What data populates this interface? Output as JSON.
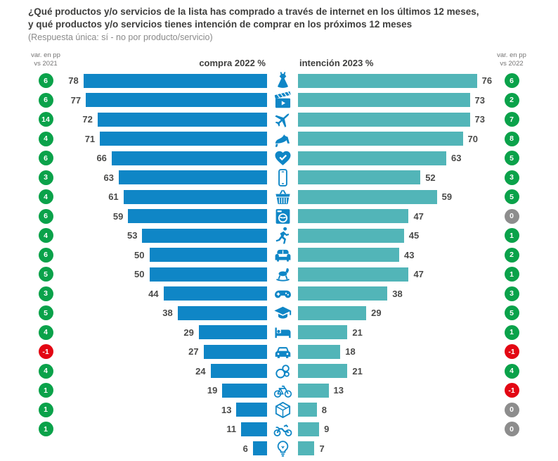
{
  "title": {
    "line1": "¿Qué productos y/o servicios de la lista has comprado a través de internet en los últimos 12 meses,",
    "line2": "y qué productos y/o servicios tienes intención de comprar en los próximos 12 meses",
    "subtitle": "(Respuesta única: sí - no por producto/servicio)"
  },
  "headers": {
    "var_left": {
      "line1": "var. en pp",
      "line2": "vs 2021"
    },
    "compra": "compra 2022 %",
    "intencion": "intención 2023 %",
    "var_right": {
      "line1": "var. en pp",
      "line2": "vs 2022"
    }
  },
  "colors": {
    "compra_bar": "#0f86c6",
    "intencion_bar": "#52b5b8",
    "positive_badge": "#0aa24a",
    "negative_badge": "#e30613",
    "zero_badge": "#8d8d8d",
    "icon_blue": "#0f86c6"
  },
  "chart_data": {
    "type": "bar",
    "variant": "butterfly",
    "title": "¿Qué productos y/o servicios de la lista has comprado a través de internet en los últimos 12 meses, y qué productos y/o servicios tienes intención de comprar en los próximos 12 meses",
    "subtitle": "(Respuesta única: sí - no por producto/servicio)",
    "xlim": [
      0,
      100
    ],
    "legend_position": "top",
    "series": [
      {
        "name": "compra 2022 %",
        "color": "#0f86c6"
      },
      {
        "name": "intención 2023 %",
        "color": "#52b5b8"
      },
      {
        "name": "var. en pp vs 2021",
        "type": "badge"
      },
      {
        "name": "var. en pp vs 2022",
        "type": "badge"
      }
    ],
    "rows": [
      {
        "icon": "dress-icon",
        "compra_2022": 78,
        "intencion_2023": 76,
        "var_pp_vs_2021": 6,
        "var_pp_vs_2022": 6
      },
      {
        "icon": "clapperboard-icon",
        "compra_2022": 77,
        "intencion_2023": 73,
        "var_pp_vs_2021": 6,
        "var_pp_vs_2022": 2
      },
      {
        "icon": "airplane-icon",
        "compra_2022": 72,
        "intencion_2023": 73,
        "var_pp_vs_2021": 14,
        "var_pp_vs_2022": 7
      },
      {
        "icon": "high-heel-icon",
        "compra_2022": 71,
        "intencion_2023": 70,
        "var_pp_vs_2021": 4,
        "var_pp_vs_2022": 8
      },
      {
        "icon": "heart-check-icon",
        "compra_2022": 66,
        "intencion_2023": 63,
        "var_pp_vs_2021": 6,
        "var_pp_vs_2022": 5
      },
      {
        "icon": "smartphone-icon",
        "compra_2022": 63,
        "intencion_2023": 52,
        "var_pp_vs_2021": 3,
        "var_pp_vs_2022": 3
      },
      {
        "icon": "shopping-basket-icon",
        "compra_2022": 61,
        "intencion_2023": 59,
        "var_pp_vs_2021": 4,
        "var_pp_vs_2022": 5
      },
      {
        "icon": "washing-machine-icon",
        "compra_2022": 59,
        "intencion_2023": 47,
        "var_pp_vs_2021": 6,
        "var_pp_vs_2022": 0
      },
      {
        "icon": "runner-icon",
        "compra_2022": 53,
        "intencion_2023": 45,
        "var_pp_vs_2021": 4,
        "var_pp_vs_2022": 1
      },
      {
        "icon": "sofa-icon",
        "compra_2022": 50,
        "intencion_2023": 43,
        "var_pp_vs_2021": 6,
        "var_pp_vs_2022": 2
      },
      {
        "icon": "rocking-horse-icon",
        "compra_2022": 50,
        "intencion_2023": 47,
        "var_pp_vs_2021": 5,
        "var_pp_vs_2022": 1
      },
      {
        "icon": "gamepad-icon",
        "compra_2022": 44,
        "intencion_2023": 38,
        "var_pp_vs_2021": 3,
        "var_pp_vs_2022": 3
      },
      {
        "icon": "graduation-cap-icon",
        "compra_2022": 38,
        "intencion_2023": 29,
        "var_pp_vs_2021": 5,
        "var_pp_vs_2022": 5
      },
      {
        "icon": "bed-icon",
        "compra_2022": 29,
        "intencion_2023": 21,
        "var_pp_vs_2021": 4,
        "var_pp_vs_2022": 1
      },
      {
        "icon": "car-icon",
        "compra_2022": 27,
        "intencion_2023": 18,
        "var_pp_vs_2021": -1,
        "var_pp_vs_2022": -1
      },
      {
        "icon": "pacifier-icon",
        "compra_2022": 24,
        "intencion_2023": 21,
        "var_pp_vs_2021": 4,
        "var_pp_vs_2022": 4
      },
      {
        "icon": "bicycle-icon",
        "compra_2022": 19,
        "intencion_2023": 13,
        "var_pp_vs_2021": 1,
        "var_pp_vs_2022": -1
      },
      {
        "icon": "package-box-icon",
        "compra_2022": 13,
        "intencion_2023": 8,
        "var_pp_vs_2021": 1,
        "var_pp_vs_2022": 0
      },
      {
        "icon": "motorcycle-icon",
        "compra_2022": 11,
        "intencion_2023": 9,
        "var_pp_vs_2021": 1,
        "var_pp_vs_2022": 0
      },
      {
        "icon": "lightbulb-icon",
        "compra_2022": 6,
        "intencion_2023": 7,
        "var_pp_vs_2021": null,
        "var_pp_vs_2022": null
      }
    ]
  }
}
